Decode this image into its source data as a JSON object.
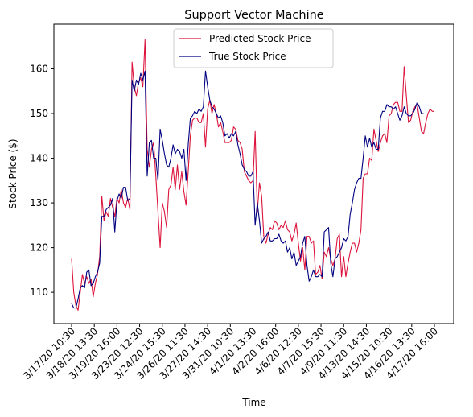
{
  "chart_data": {
    "type": "line",
    "title": "Support Vector Machine",
    "xlabel": "Time",
    "ylabel": "Stock Price ($)",
    "ylim": [
      103,
      170
    ],
    "yticks": [
      110,
      120,
      130,
      140,
      150,
      160
    ],
    "x_tick_labels": [
      "3/17/20 10:30",
      "3/18/20 13:30",
      "3/19/20 16:00",
      "3/23/20 12:30",
      "3/24/20 15:30",
      "3/26/20 11:30",
      "3/27/20 14:30",
      "3/31/20 10:30",
      "4/1/20 13:30",
      "4/2/20 16:00",
      "4/6/20 12:30",
      "4/7/20 15:30",
      "4/9/20 11:30",
      "4/13/20 14:30",
      "4/15/20 10:30",
      "4/16/20 13:30",
      "4/17/20 16:00"
    ],
    "legend_position": "top-center",
    "grid": false,
    "series": [
      {
        "name": "Predicted Stock Price",
        "color": "#DC143C",
        "values": [
          117.5,
          110,
          107,
          106,
          110,
          114,
          112,
          113.5,
          112,
          113,
          109,
          112,
          114,
          118,
          131.5,
          126,
          128,
          127,
          131,
          129,
          127,
          131,
          130,
          133,
          130,
          129,
          131,
          128.5,
          161.5,
          156,
          154,
          157,
          158,
          156,
          166.5,
          142,
          138,
          142,
          143.5,
          136,
          128,
          120,
          130,
          128,
          124.5,
          133,
          134,
          138,
          133,
          138.5,
          133,
          137,
          132.5,
          129.5,
          137,
          145,
          148.5,
          149,
          149,
          148,
          148,
          150,
          142.5,
          151,
          153,
          150,
          152,
          150,
          147,
          148,
          146,
          143.5,
          143.5,
          143.5,
          144,
          147,
          146.5,
          144,
          143.5,
          142,
          137,
          136,
          135,
          134.5,
          135,
          146,
          128,
          134.5,
          131.5,
          122.5,
          121,
          123,
          124.5,
          124,
          126,
          125.5,
          124,
          125,
          124.5,
          126,
          124,
          123.5,
          121.5,
          123,
          125.5,
          121,
          117,
          120,
          115,
          122.5,
          122.5,
          121,
          121.5,
          114,
          114.5,
          116,
          113,
          119,
          118,
          120,
          117.5,
          116,
          117.5,
          122,
          123,
          113.5,
          118,
          113.5,
          116.5,
          119,
          121,
          121,
          119,
          121,
          124,
          135.5,
          136.5,
          136.5,
          140,
          139.5,
          146.5,
          144,
          141.5,
          143.5,
          145,
          145.5,
          143.5,
          149.5,
          150,
          152,
          152.5,
          152.5,
          150.5,
          150.5,
          160.5,
          154,
          148,
          148.5,
          150.5,
          151.5,
          152,
          149,
          146,
          145.5,
          148,
          150,
          151,
          150.5,
          150.5
        ]
      },
      {
        "name": "True Stock Price",
        "color": "#000080",
        "values": [
          107.5,
          106.5,
          106.5,
          108.5,
          111,
          111.5,
          111,
          114.5,
          115,
          111.5,
          112,
          113.5,
          114.5,
          116.5,
          127,
          127,
          128.5,
          129,
          129.5,
          131,
          123.5,
          130.5,
          132,
          131,
          133.5,
          133.5,
          130.5,
          131,
          157.5,
          155,
          157.5,
          156.5,
          159,
          157.5,
          159.5,
          136,
          143.5,
          144,
          140,
          140,
          135,
          146.5,
          144,
          141,
          138.5,
          138,
          140,
          143,
          141,
          142,
          141.5,
          140,
          142,
          135,
          143,
          149,
          149.5,
          150.5,
          150,
          151,
          150.5,
          151.5,
          159.5,
          156,
          153,
          151.5,
          151,
          150,
          149,
          149.5,
          148,
          145,
          145.5,
          144.5,
          145.5,
          145,
          146,
          143,
          141,
          138.5,
          137.5,
          137,
          136,
          136,
          137,
          125,
          130,
          126,
          121,
          122,
          122.5,
          123.5,
          121.5,
          121.5,
          122,
          122,
          123,
          121.5,
          121,
          121.5,
          119,
          120,
          117.5,
          119,
          116,
          117,
          118,
          121,
          122.5,
          116,
          112.5,
          113.5,
          115,
          113.5,
          113.5,
          114,
          113.5,
          123.5,
          124,
          124.5,
          116.5,
          113.5,
          117.5,
          118,
          119,
          120,
          122,
          121.5,
          122.5,
          127.5,
          130,
          133,
          134.5,
          135.5,
          135.5,
          140,
          145,
          142.5,
          144.5,
          142.5,
          143.5,
          142,
          142,
          149,
          150.5,
          150.5,
          152,
          151.5,
          151.5,
          151,
          151.5,
          150,
          148.5,
          149.5,
          151.5,
          150,
          149.5,
          149.5,
          150,
          151,
          152.5,
          151.5,
          150,
          150
        ]
      }
    ]
  }
}
